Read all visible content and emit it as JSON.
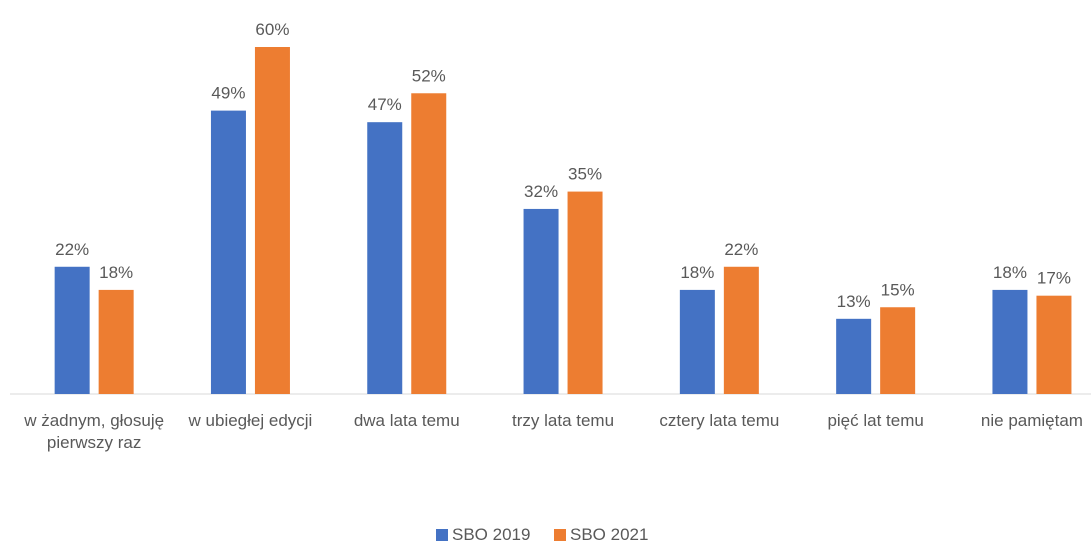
{
  "chart_data": {
    "type": "bar",
    "categories": [
      "w żadnym, głosuję pierwszy raz",
      "w ubiegłej edycji",
      "dwa lata temu",
      "trzy lata temu",
      "cztery lata temu",
      "pięć lat temu",
      "nie pamiętam"
    ],
    "series": [
      {
        "name": "SBO 2019",
        "color": "#4472c4",
        "values": [
          22,
          49,
          47,
          32,
          18,
          13,
          18
        ],
        "value_labels": [
          "22%",
          "49%",
          "47%",
          "32%",
          "18%",
          "13%",
          "18%"
        ]
      },
      {
        "name": "SBO 2021",
        "color": "#ed7d31",
        "values": [
          18,
          60,
          52,
          35,
          22,
          15,
          17
        ],
        "value_labels": [
          "18%",
          "60%",
          "52%",
          "35%",
          "22%",
          "15%",
          "17%"
        ]
      }
    ],
    "legend": "bottom"
  }
}
